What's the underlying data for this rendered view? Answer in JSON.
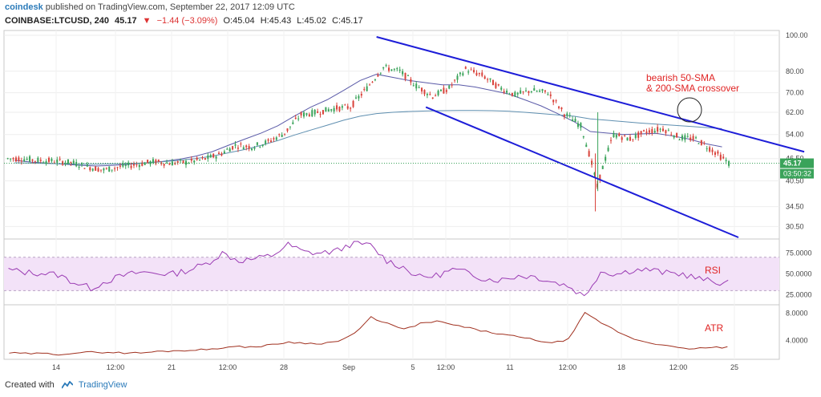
{
  "header": {
    "brand": "coindesk",
    "published": "published on TradingView.com, September 22, 2017 12:09 UTC",
    "symbol": "COINBASE:LTCUSD, 240",
    "last": "45.17",
    "change_arrow": "▼",
    "change": "−1.44 (−3.09%)",
    "open": "O:45.04",
    "high": "H:45.43",
    "low": "L:45.02",
    "close": "C:45.17"
  },
  "footer": {
    "created_with": "Created with",
    "tradingview": "TradingView",
    "logo_icon": "tradingview-logo-icon"
  },
  "colors": {
    "candle_up": "#3aa35a",
    "candle_down": "#d9433b",
    "trendline": "#1d1dd8",
    "sma50": "#5a5aa8",
    "sma200": "#5f8fb0",
    "sma_other": "#6a8ab6",
    "rsi": "#9a3bb3",
    "rsi_band": "#f3e2f8",
    "atr": "#a0301f",
    "price_line": "#3aa35a",
    "price_tag": "#3aa35a",
    "annotation": "#e02424"
  },
  "chart_data": {
    "type": "line",
    "title": "COINBASE:LTCUSD, 240",
    "xlabel": "",
    "ylabel": "",
    "y_scale": "log",
    "x_tick_labels": [
      "14",
      "12:00",
      "21",
      "12:00",
      "28",
      "Sep",
      "5",
      "12:00",
      "11",
      "12:00",
      "18",
      "12:00",
      "25"
    ],
    "price_axis_ticks": [
      "100.00",
      "80.00",
      "70.00",
      "62.00",
      "54.00",
      "46.50",
      "40.50",
      "34.50",
      "30.50"
    ],
    "last_price_label": "45.17",
    "countdown_label": "03:50:32",
    "ylim": [
      28.5,
      102
    ],
    "series": [
      {
        "type": "candlestick",
        "x": [
          "Aug 10",
          "Aug 11",
          "Aug 12",
          "Aug 13",
          "Aug 14",
          "Aug 15",
          "Aug 16",
          "Aug 17",
          "Aug 18",
          "Aug 19",
          "Aug 20",
          "Aug 21",
          "Aug 22",
          "Aug 23",
          "Aug 24",
          "Aug 25",
          "Aug 26",
          "Aug 27",
          "Aug 28",
          "Aug 29",
          "Aug 30",
          "Aug 31",
          "Sep 1",
          "Sep 2",
          "Sep 3",
          "Sep 4",
          "Sep 5",
          "Sep 6",
          "Sep 7",
          "Sep 8",
          "Sep 9",
          "Sep 10",
          "Sep 11",
          "Sep 12",
          "Sep 13",
          "Sep 14",
          "Sep 15",
          "Sep 16",
          "Sep 17",
          "Sep 18",
          "Sep 19",
          "Sep 20",
          "Sep 21",
          "Sep 22"
        ],
        "close": [
          46.5,
          46.0,
          45.8,
          45.4,
          44.2,
          43.3,
          44.2,
          44.8,
          45.6,
          45.2,
          45.4,
          46.2,
          47.6,
          50.5,
          50.0,
          51.6,
          54.5,
          61.0,
          62.0,
          63.5,
          64.0,
          72.0,
          82.0,
          80.0,
          73.0,
          68.5,
          72.0,
          81.0,
          78.0,
          72.5,
          69.0,
          71.0,
          70.0,
          61.5,
          57.0,
          39.0,
          54.0,
          52.5,
          55.0,
          56.0,
          53.0,
          52.5,
          49.0,
          45.2
        ]
      },
      {
        "name": "",
        "type": "moving_average",
        "values": [
          46.0,
          45.5,
          45.2,
          44.9,
          44.6,
          44.4,
          44.6,
          44.9,
          45.3,
          45.7,
          46.3,
          47.2,
          48.5,
          50.5,
          52.5,
          54.5,
          57.0,
          60.5,
          64.0,
          67.0,
          71.0,
          75.5,
          78.5,
          77.0,
          75.5,
          74.5,
          73.5,
          73.5,
          72.5,
          71.0,
          69.5,
          67.0,
          64.5,
          61.5,
          58.5,
          55.0,
          54.5,
          54.0,
          54.2,
          54.4,
          53.5,
          52.5,
          51.0,
          50.0
        ]
      },
      {
        "name": "",
        "type": "moving_average",
        "values": [
          45.3,
          45.2,
          45.1,
          45.0,
          44.9,
          44.9,
          45.0,
          45.1,
          45.3,
          45.6,
          46.0,
          46.5,
          47.2,
          48.2,
          49.2,
          50.5,
          52.0,
          53.8,
          55.5,
          57.2,
          59.0,
          60.5,
          61.5,
          62.0,
          62.3,
          62.5,
          62.6,
          62.7,
          62.7,
          62.6,
          62.4,
          62.0,
          61.5,
          61.0,
          60.5,
          59.5,
          59.0,
          58.5,
          58.0,
          57.6,
          57.2,
          56.8,
          56.4,
          56.0
        ]
      }
    ],
    "trendlines": [
      {
        "from": [
          "Sep 1",
          99.0
        ],
        "to": [
          "Sep 27",
          48.5
        ]
      },
      {
        "from": [
          "Sep 4",
          64.0
        ],
        "to": [
          "Sep 23",
          28.5
        ]
      }
    ],
    "annotation": {
      "text_line1": "bearish 50-SMA",
      "text_line2": "& 200-SMA crossover"
    },
    "rsi": {
      "label": "RSI",
      "ticks": [
        "75.0000",
        "50.0000",
        "25.0000"
      ],
      "ylim": [
        15,
        90
      ],
      "band": [
        30,
        70
      ],
      "values": [
        55,
        52,
        51,
        49,
        40,
        33,
        42,
        48,
        52,
        51,
        50,
        55,
        62,
        75,
        66,
        68,
        72,
        85,
        76,
        75,
        78,
        88,
        84,
        66,
        58,
        46,
        48,
        55,
        51,
        44,
        43,
        48,
        47,
        41,
        36,
        23,
        53,
        50,
        55,
        55,
        51,
        50,
        44,
        40
      ]
    },
    "atr": {
      "label": "ATR",
      "ticks": [
        "8.0000",
        "4.0000"
      ],
      "ylim": [
        1.5,
        9
      ],
      "values": [
        2.2,
        2.1,
        2.1,
        2.0,
        2.2,
        2.3,
        2.3,
        2.2,
        2.2,
        2.4,
        2.5,
        2.6,
        2.7,
        3.0,
        3.1,
        3.1,
        3.4,
        3.8,
        3.6,
        3.6,
        3.9,
        5.0,
        7.4,
        6.5,
        5.6,
        6.5,
        6.8,
        6.3,
        5.8,
        5.3,
        4.9,
        4.5,
        4.1,
        3.6,
        4.2,
        8.0,
        6.6,
        5.3,
        4.2,
        3.7,
        3.2,
        2.8,
        2.9,
        3.0
      ]
    }
  }
}
